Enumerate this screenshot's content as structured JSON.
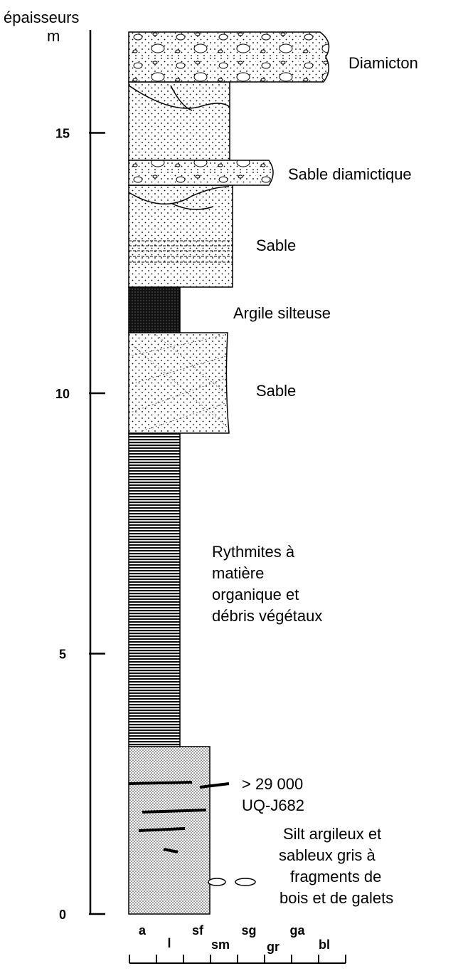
{
  "axis": {
    "title": "épaisseurs",
    "unit": "m",
    "ticks": [
      0,
      5,
      10,
      15
    ]
  },
  "units": [
    {
      "lines": [
        "Diamicton"
      ]
    },
    {
      "lines": [
        "Sable diamictique"
      ]
    },
    {
      "lines": [
        "Sable"
      ]
    },
    {
      "lines": [
        "Argile silteuse"
      ]
    },
    {
      "lines": [
        "Sable"
      ]
    },
    {
      "lines": [
        "Rythmites à",
        "matière",
        "organique et",
        "débris végétaux"
      ]
    },
    {
      "lines": [
        "Silt argileux et",
        "sableux gris à",
        "fragments de",
        "bois et de galets"
      ]
    }
  ],
  "dating": {
    "age": "> 29 000",
    "lab_code": "UQ-J682"
  },
  "grain_sizes": [
    "a",
    "l",
    "sf",
    "sm",
    "sg",
    "gr",
    "ga",
    "bl"
  ]
}
